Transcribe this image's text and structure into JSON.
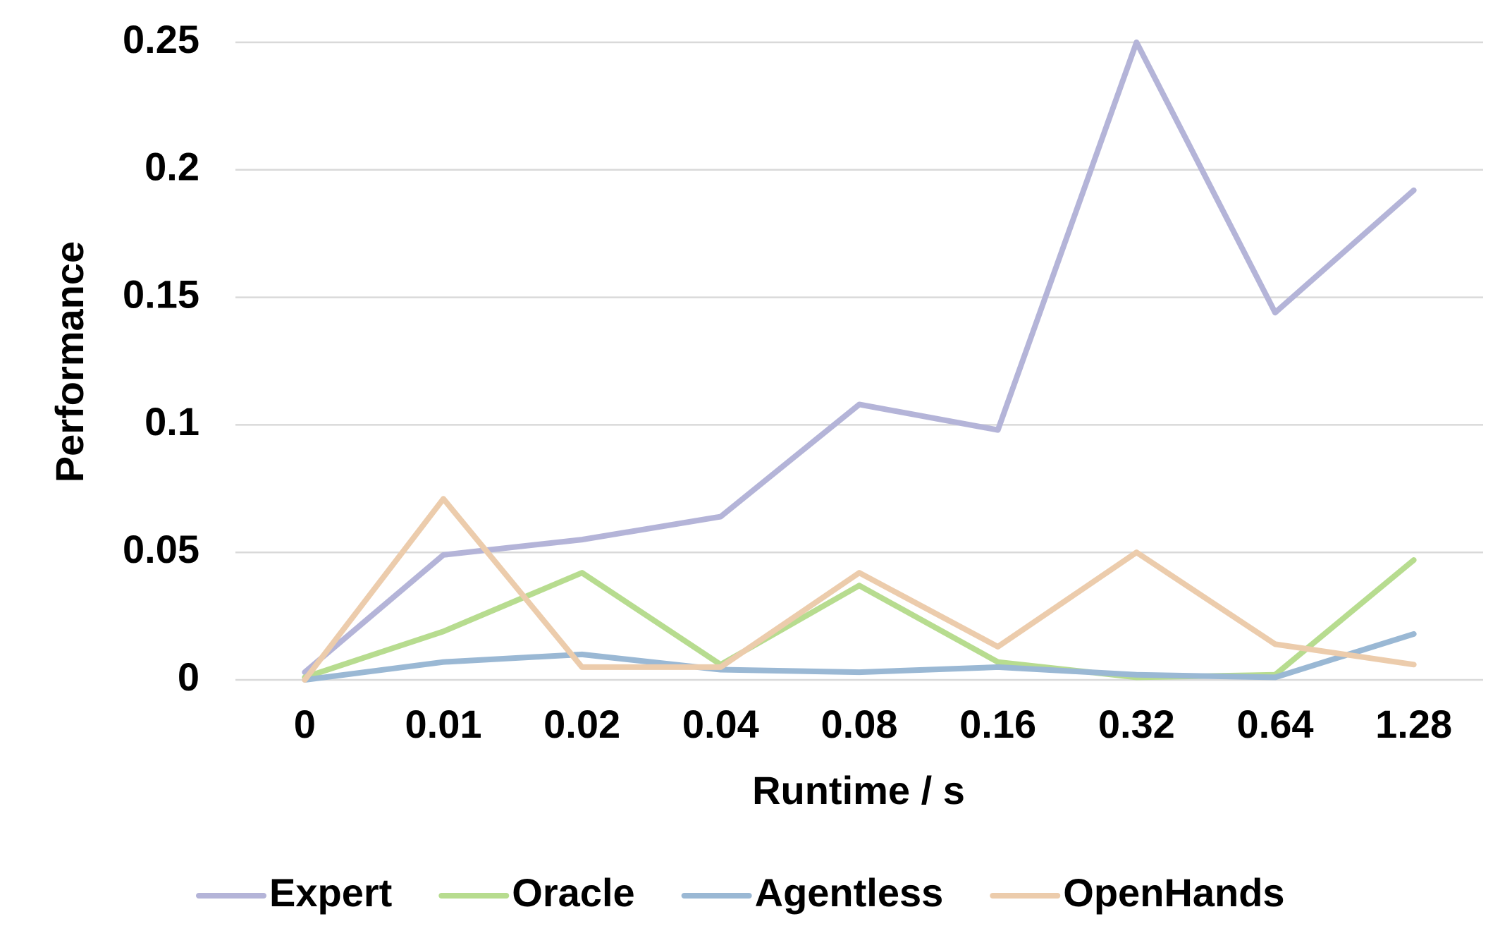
{
  "chart_data": {
    "type": "line",
    "xlabel": "Runtime / s",
    "ylabel": "Performance",
    "categories": [
      "0",
      "0.01",
      "0.02",
      "0.04",
      "0.08",
      "0.16",
      "0.32",
      "0.64",
      "1.28"
    ],
    "series": [
      {
        "name": "Expert",
        "color": "#b4b4d8",
        "values": [
          0.003,
          0.049,
          0.055,
          0.064,
          0.108,
          0.098,
          0.25,
          0.144,
          0.192
        ]
      },
      {
        "name": "Oracle",
        "color": "#b7dc8f",
        "values": [
          0.001,
          0.019,
          0.042,
          0.006,
          0.037,
          0.007,
          0.001,
          0.002,
          0.047
        ]
      },
      {
        "name": "Agentless",
        "color": "#9ab8d4",
        "values": [
          0,
          0.007,
          0.01,
          0.004,
          0.003,
          0.005,
          0.002,
          0.001,
          0.018
        ]
      },
      {
        "name": "OpenHands",
        "color": "#ecccac",
        "values": [
          0,
          0.071,
          0.005,
          0.005,
          0.042,
          0.013,
          0.05,
          0.014,
          0.006
        ]
      }
    ],
    "ylim": [
      0,
      0.25
    ],
    "yticks": [
      0,
      0.05,
      0.1,
      0.15,
      0.2,
      0.25
    ],
    "grid": true,
    "legend": "bottom"
  }
}
